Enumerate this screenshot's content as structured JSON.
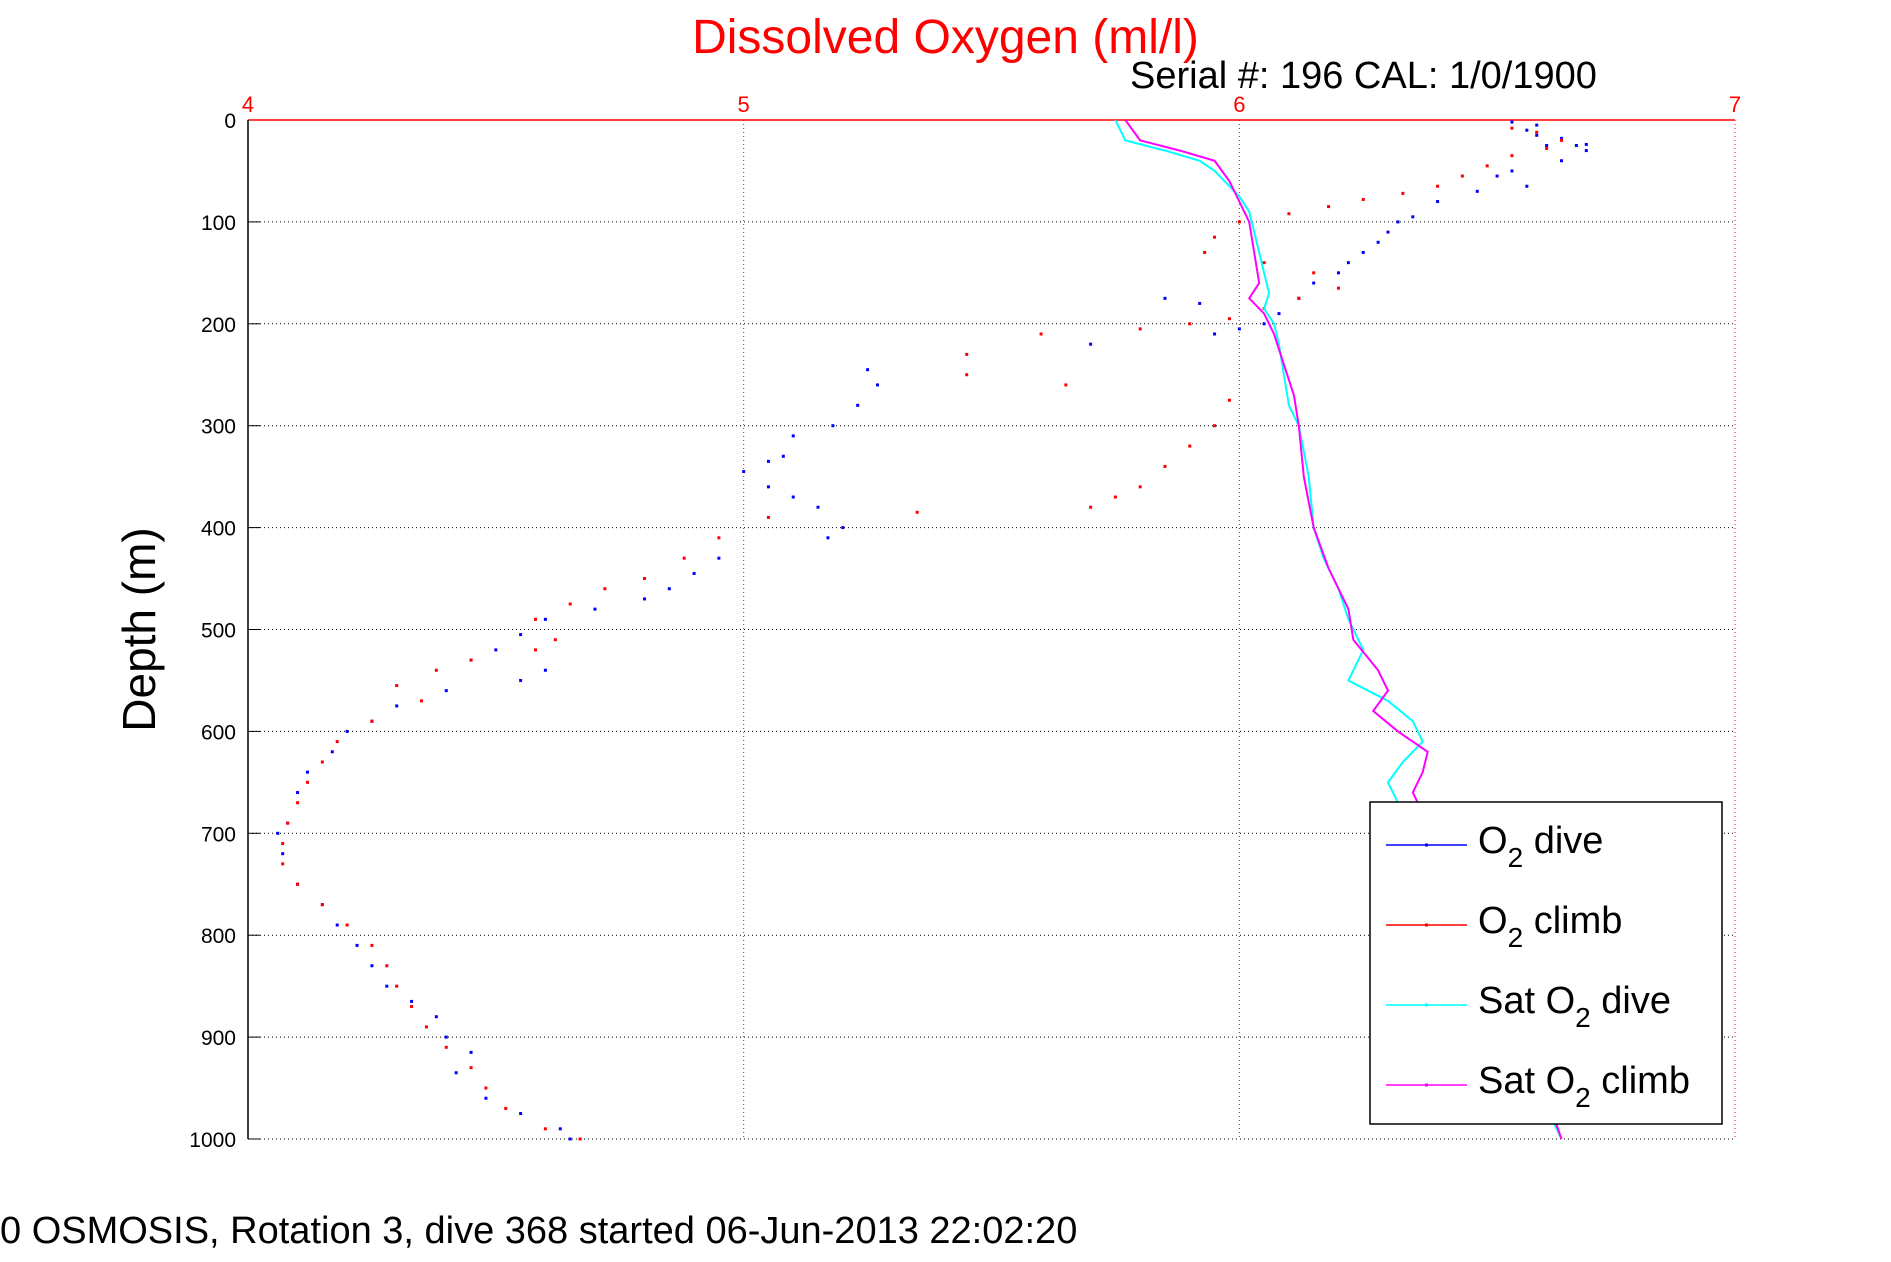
{
  "page": {
    "title": "Dissolved Oxygen (ml/l)",
    "serial_line": "Serial #: 196  CAL: 1/0/1900",
    "footer": "0 OSMOSIS, Rotation 3, dive 368 started 06-Jun-2013 22:02:20"
  },
  "colors": {
    "title": "#ff0000",
    "top_axis": "#ff0000",
    "o2_dive": "#0000ff",
    "o2_climb": "#ff0000",
    "sat_dive": "#00ffff",
    "sat_climb": "#ff00ff",
    "grid_x": "#ff0000",
    "grid_y": "#000000"
  },
  "chart_data": {
    "type": "scatter",
    "title": "Dissolved Oxygen (ml/l)",
    "xlabel": "",
    "ylabel": "Depth (m)",
    "xlim": [
      4,
      7
    ],
    "ylim": [
      0,
      1000
    ],
    "y_reversed": true,
    "x_axis_position": "top",
    "x_ticks": [
      "4",
      "5",
      "6",
      "7"
    ],
    "y_ticks": [
      "0",
      "100",
      "200",
      "300",
      "400",
      "500",
      "600",
      "700",
      "800",
      "900",
      "1000"
    ],
    "grid": true,
    "legend_position": "bottom-right",
    "series": [
      {
        "name": "O2 dive",
        "style": "points",
        "points": [
          [
            6.55,
            2
          ],
          [
            6.6,
            5
          ],
          [
            6.58,
            10
          ],
          [
            6.6,
            15
          ],
          [
            6.65,
            18
          ],
          [
            6.62,
            25
          ],
          [
            6.68,
            25
          ],
          [
            6.7,
            24
          ],
          [
            6.7,
            30
          ],
          [
            6.65,
            40
          ],
          [
            6.55,
            50
          ],
          [
            6.52,
            55
          ],
          [
            6.58,
            65
          ],
          [
            6.48,
            70
          ],
          [
            6.4,
            80
          ],
          [
            6.35,
            95
          ],
          [
            6.32,
            100
          ],
          [
            6.3,
            110
          ],
          [
            6.28,
            120
          ],
          [
            6.25,
            130
          ],
          [
            6.22,
            140
          ],
          [
            6.2,
            150
          ],
          [
            6.15,
            160
          ],
          [
            6.12,
            175
          ],
          [
            6.08,
            190
          ],
          [
            6.05,
            200
          ],
          [
            6.0,
            205
          ],
          [
            5.95,
            210
          ],
          [
            5.85,
            175
          ],
          [
            5.92,
            180
          ],
          [
            5.7,
            220
          ],
          [
            5.25,
            245
          ],
          [
            5.27,
            260
          ],
          [
            5.23,
            280
          ],
          [
            5.18,
            300
          ],
          [
            5.1,
            310
          ],
          [
            5.08,
            330
          ],
          [
            5.05,
            335
          ],
          [
            5.0,
            345
          ],
          [
            5.05,
            360
          ],
          [
            5.1,
            370
          ],
          [
            5.15,
            380
          ],
          [
            5.2,
            400
          ],
          [
            5.17,
            410
          ],
          [
            4.95,
            430
          ],
          [
            4.9,
            445
          ],
          [
            4.85,
            460
          ],
          [
            4.8,
            470
          ],
          [
            4.7,
            480
          ],
          [
            4.6,
            490
          ],
          [
            4.55,
            505
          ],
          [
            4.5,
            520
          ],
          [
            4.45,
            530
          ],
          [
            4.6,
            540
          ],
          [
            4.55,
            550
          ],
          [
            4.4,
            560
          ],
          [
            4.3,
            575
          ],
          [
            4.25,
            590
          ],
          [
            4.2,
            600
          ],
          [
            4.17,
            620
          ],
          [
            4.12,
            640
          ],
          [
            4.1,
            660
          ],
          [
            4.08,
            690
          ],
          [
            4.06,
            700
          ],
          [
            4.07,
            720
          ],
          [
            4.1,
            750
          ],
          [
            4.15,
            770
          ],
          [
            4.18,
            790
          ],
          [
            4.22,
            810
          ],
          [
            4.25,
            830
          ],
          [
            4.28,
            850
          ],
          [
            4.33,
            865
          ],
          [
            4.38,
            880
          ],
          [
            4.4,
            900
          ],
          [
            4.45,
            915
          ],
          [
            4.42,
            935
          ],
          [
            4.48,
            960
          ],
          [
            4.55,
            975
          ],
          [
            4.63,
            990
          ],
          [
            4.65,
            1000
          ]
        ]
      },
      {
        "name": "O2 climb",
        "style": "points",
        "points": [
          [
            6.55,
            8
          ],
          [
            6.6,
            12
          ],
          [
            6.65,
            20
          ],
          [
            6.62,
            28
          ],
          [
            6.55,
            35
          ],
          [
            6.5,
            45
          ],
          [
            6.45,
            55
          ],
          [
            6.4,
            65
          ],
          [
            6.33,
            72
          ],
          [
            6.25,
            78
          ],
          [
            6.18,
            85
          ],
          [
            6.1,
            92
          ],
          [
            6.0,
            100
          ],
          [
            5.95,
            115
          ],
          [
            5.93,
            130
          ],
          [
            6.05,
            140
          ],
          [
            6.15,
            150
          ],
          [
            6.2,
            165
          ],
          [
            6.12,
            175
          ],
          [
            6.05,
            185
          ],
          [
            5.98,
            195
          ],
          [
            5.9,
            200
          ],
          [
            5.8,
            205
          ],
          [
            5.6,
            210
          ],
          [
            5.45,
            230
          ],
          [
            5.45,
            250
          ],
          [
            5.65,
            260
          ],
          [
            5.98,
            275
          ],
          [
            5.95,
            300
          ],
          [
            5.9,
            320
          ],
          [
            5.85,
            340
          ],
          [
            5.8,
            360
          ],
          [
            5.75,
            370
          ],
          [
            5.7,
            380
          ],
          [
            5.35,
            385
          ],
          [
            5.05,
            390
          ],
          [
            4.95,
            410
          ],
          [
            4.88,
            430
          ],
          [
            4.8,
            450
          ],
          [
            4.72,
            460
          ],
          [
            4.65,
            475
          ],
          [
            4.58,
            490
          ],
          [
            4.62,
            510
          ],
          [
            4.58,
            520
          ],
          [
            4.45,
            530
          ],
          [
            4.38,
            540
          ],
          [
            4.3,
            555
          ],
          [
            4.35,
            570
          ],
          [
            4.25,
            590
          ],
          [
            4.18,
            610
          ],
          [
            4.15,
            630
          ],
          [
            4.12,
            650
          ],
          [
            4.1,
            670
          ],
          [
            4.08,
            690
          ],
          [
            4.07,
            710
          ],
          [
            4.07,
            730
          ],
          [
            4.1,
            750
          ],
          [
            4.15,
            770
          ],
          [
            4.2,
            790
          ],
          [
            4.25,
            810
          ],
          [
            4.28,
            830
          ],
          [
            4.3,
            850
          ],
          [
            4.33,
            870
          ],
          [
            4.36,
            890
          ],
          [
            4.4,
            910
          ],
          [
            4.45,
            930
          ],
          [
            4.48,
            950
          ],
          [
            4.52,
            970
          ],
          [
            4.6,
            990
          ],
          [
            4.67,
            1000
          ]
        ]
      },
      {
        "name": "Sat O2 dive",
        "style": "line",
        "points": [
          [
            5.75,
            0
          ],
          [
            5.77,
            20
          ],
          [
            5.85,
            30
          ],
          [
            5.92,
            40
          ],
          [
            5.95,
            50
          ],
          [
            5.97,
            60
          ],
          [
            6.0,
            75
          ],
          [
            6.02,
            90
          ],
          [
            6.03,
            110
          ],
          [
            6.04,
            130
          ],
          [
            6.05,
            150
          ],
          [
            6.06,
            170
          ],
          [
            6.05,
            185
          ],
          [
            6.07,
            200
          ],
          [
            6.08,
            220
          ],
          [
            6.09,
            250
          ],
          [
            6.1,
            280
          ],
          [
            6.12,
            300
          ],
          [
            6.14,
            350
          ],
          [
            6.15,
            400
          ],
          [
            6.17,
            430
          ],
          [
            6.2,
            460
          ],
          [
            6.22,
            490
          ],
          [
            6.25,
            520
          ],
          [
            6.22,
            550
          ],
          [
            6.3,
            570
          ],
          [
            6.35,
            590
          ],
          [
            6.37,
            610
          ],
          [
            6.33,
            630
          ],
          [
            6.3,
            650
          ],
          [
            6.32,
            670
          ],
          [
            6.35,
            700
          ],
          [
            6.4,
            750
          ],
          [
            6.45,
            800
          ],
          [
            6.5,
            850
          ],
          [
            6.55,
            900
          ],
          [
            6.6,
            950
          ],
          [
            6.65,
            1000
          ]
        ]
      },
      {
        "name": "Sat O2 climb",
        "style": "line",
        "points": [
          [
            5.77,
            0
          ],
          [
            5.8,
            20
          ],
          [
            5.88,
            30
          ],
          [
            5.95,
            40
          ],
          [
            5.98,
            60
          ],
          [
            6.0,
            80
          ],
          [
            6.02,
            100
          ],
          [
            6.03,
            130
          ],
          [
            6.04,
            160
          ],
          [
            6.02,
            175
          ],
          [
            6.05,
            190
          ],
          [
            6.07,
            210
          ],
          [
            6.09,
            240
          ],
          [
            6.11,
            270
          ],
          [
            6.12,
            300
          ],
          [
            6.13,
            350
          ],
          [
            6.15,
            400
          ],
          [
            6.18,
            440
          ],
          [
            6.22,
            480
          ],
          [
            6.23,
            510
          ],
          [
            6.28,
            540
          ],
          [
            6.3,
            560
          ],
          [
            6.27,
            580
          ],
          [
            6.32,
            600
          ],
          [
            6.38,
            620
          ],
          [
            6.37,
            640
          ],
          [
            6.35,
            660
          ],
          [
            6.38,
            690
          ],
          [
            6.4,
            720
          ],
          [
            6.45,
            770
          ],
          [
            6.5,
            820
          ],
          [
            6.55,
            870
          ],
          [
            6.6,
            930
          ],
          [
            6.65,
            1000
          ]
        ]
      }
    ],
    "legend": [
      {
        "base": "O",
        "sub": "2",
        "rest": " dive",
        "color": "#0000ff"
      },
      {
        "base": "O",
        "sub": "2",
        "rest": " climb",
        "color": "#ff0000"
      },
      {
        "base": "Sat O",
        "sub": "2",
        "rest": " dive",
        "color": "#00ffff"
      },
      {
        "base": "Sat O",
        "sub": "2",
        "rest": " climb",
        "color": "#ff00ff"
      }
    ]
  }
}
